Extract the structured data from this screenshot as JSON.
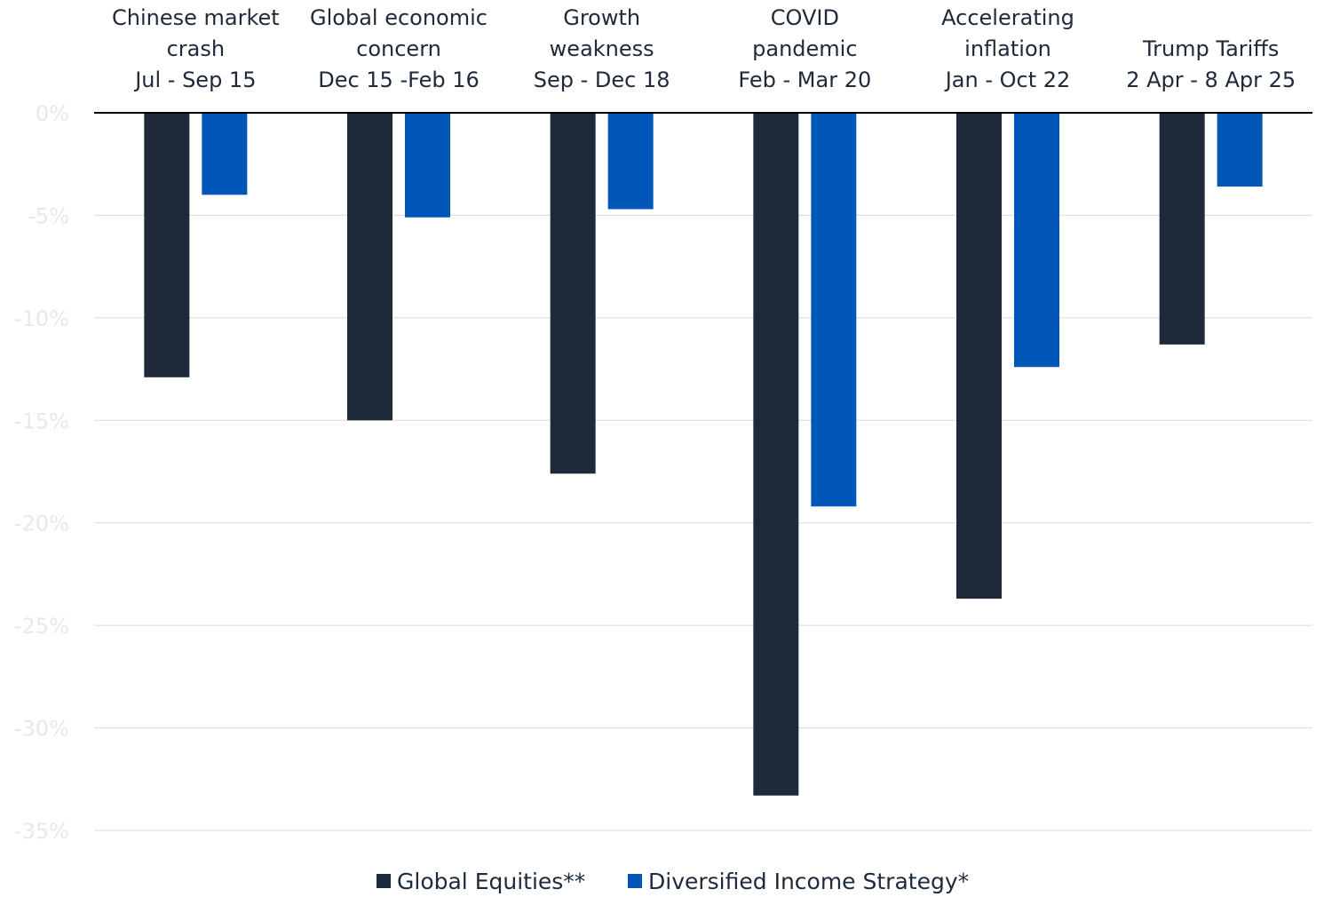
{
  "chart_data": {
    "type": "bar",
    "categories": [
      [
        "Chinese market",
        "crash",
        "Jul - Sep 15"
      ],
      [
        "Global  economic",
        "concern",
        "Dec 15 -Feb 16"
      ],
      [
        "Growth",
        "weakness",
        "Sep - Dec 18"
      ],
      [
        "COVID",
        "pandemic",
        "Feb - Mar 20"
      ],
      [
        "Accelerating",
        "inflation",
        "Jan - Oct 22"
      ],
      [
        "Trump Tariffs",
        "2 Apr - 8 Apr 25"
      ]
    ],
    "series": [
      {
        "name": "Global Equities**",
        "color": "#1e2a3a",
        "values": [
          -12.9,
          -15.0,
          -17.6,
          -33.3,
          -23.7,
          -11.3
        ]
      },
      {
        "name": "Diversified Income Strategy*",
        "color": "#0057b8",
        "values": [
          -4.0,
          -5.1,
          -4.7,
          -19.2,
          -12.4,
          -3.6
        ]
      }
    ],
    "ylim": [
      -35,
      0
    ],
    "yticks": [
      0,
      -5,
      -10,
      -15,
      -20,
      -25,
      -30,
      -35
    ],
    "ytick_labels": [
      "0%",
      "-5%",
      "-10%",
      "-15%",
      "-20%",
      "-25%",
      "-30%",
      "-35%"
    ],
    "grid": true,
    "legend_position": "bottom"
  }
}
